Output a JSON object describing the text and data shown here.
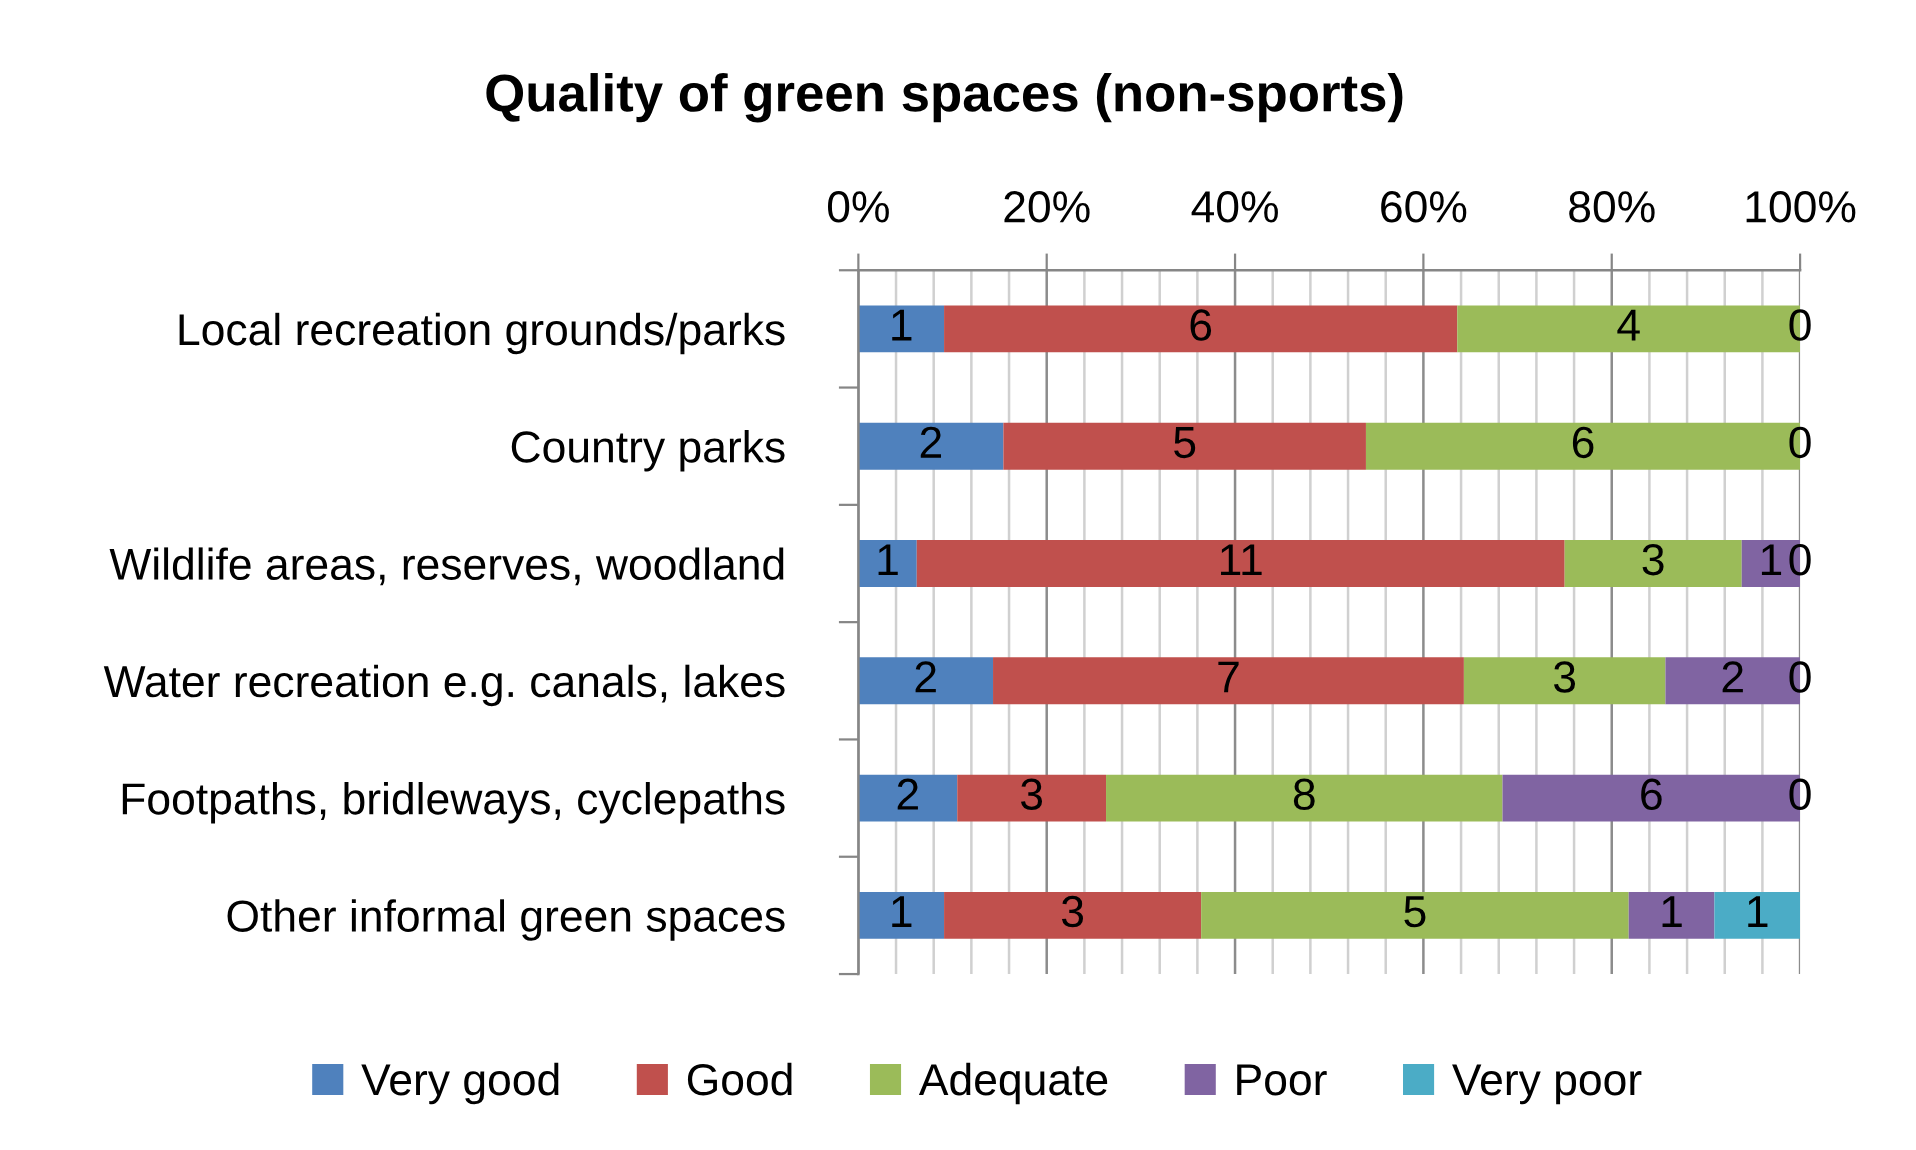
{
  "chart_data": {
    "type": "bar",
    "orientation": "horizontal",
    "stacked": true,
    "title": "Quality of green spaces (non-sports)",
    "categories": [
      "Local recreation grounds/parks",
      "Country parks",
      "Wildlife areas, reserves, woodland",
      "Water recreation e.g. canals, lakes",
      "Footpaths, bridleways, cyclepaths",
      "Other informal green spaces"
    ],
    "series": [
      {
        "name": "Very good",
        "color": "#4f81bd",
        "values": [
          9.1,
          15.4,
          6.2,
          14.3,
          10.5,
          9.1
        ]
      },
      {
        "name": "Good",
        "color": "#c0504d",
        "values": [
          54.5,
          38.5,
          68.8,
          50.0,
          15.8,
          27.3
        ]
      },
      {
        "name": "Adequate",
        "color": "#9bbb59",
        "values": [
          36.4,
          46.1,
          18.8,
          21.4,
          42.1,
          45.4
        ]
      },
      {
        "name": "Poor",
        "color": "#8064a2",
        "values": [
          0,
          0,
          6.2,
          14.3,
          31.6,
          9.1
        ]
      },
      {
        "name": "Very poor",
        "color": "#4bacc6",
        "values": [
          null,
          null,
          0,
          0,
          0,
          9.1
        ]
      }
    ],
    "annotations": [
      "1",
      "6",
      "4",
      "0",
      "2",
      "5",
      "6",
      "0",
      "1",
      "11",
      "3",
      "1",
      "0",
      "2",
      "7",
      "3",
      "2",
      "0",
      "2",
      "3",
      "8",
      "6",
      "0",
      "1",
      "3",
      "5",
      "1",
      "1"
    ],
    "xlim": [
      0,
      100
    ],
    "xticks": [
      {
        "value": 0,
        "label": "0%"
      },
      {
        "value": 4,
        "label": null
      },
      {
        "value": 8,
        "label": null
      },
      {
        "value": 12,
        "label": null
      },
      {
        "value": 16,
        "label": null
      },
      {
        "value": 20,
        "label": "20%"
      },
      {
        "value": 24,
        "label": null
      },
      {
        "value": 28,
        "label": null
      },
      {
        "value": 32,
        "label": null
      },
      {
        "value": 36,
        "label": null
      },
      {
        "value": 40,
        "label": "40%"
      },
      {
        "value": 44,
        "label": null
      },
      {
        "value": 48,
        "label": null
      },
      {
        "value": 52,
        "label": null
      },
      {
        "value": 56,
        "label": null
      },
      {
        "value": 60,
        "label": "60%"
      },
      {
        "value": 64,
        "label": null
      },
      {
        "value": 68,
        "label": null
      },
      {
        "value": 72,
        "label": null
      },
      {
        "value": 76,
        "label": null
      },
      {
        "value": 80,
        "label": "80%"
      },
      {
        "value": 84,
        "label": null
      },
      {
        "value": 88,
        "label": null
      },
      {
        "value": 92,
        "label": null
      },
      {
        "value": 96,
        "label": null
      },
      {
        "value": 100,
        "label": "100%"
      }
    ],
    "grid": "x",
    "legend": "bottom"
  }
}
